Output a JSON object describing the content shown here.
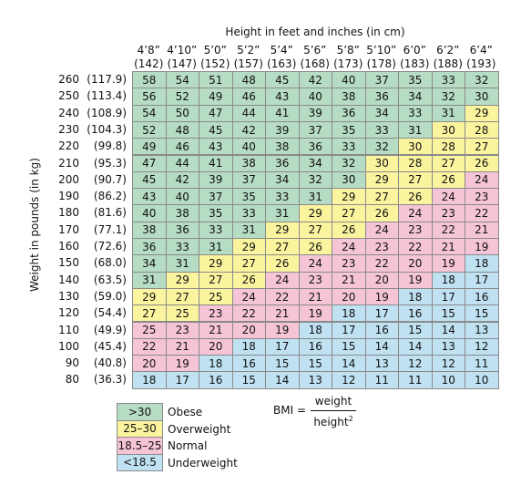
{
  "header": {
    "title": "Height in feet and inches (in cm)",
    "columns": [
      {
        "height": "4’8”",
        "cm": "(142)"
      },
      {
        "height": "4’10”",
        "cm": "(147)"
      },
      {
        "height": "5’0”",
        "cm": "(152)"
      },
      {
        "height": "5’2”",
        "cm": "(157)"
      },
      {
        "height": "5’4”",
        "cm": "(163)"
      },
      {
        "height": "5’6”",
        "cm": "(168)"
      },
      {
        "height": "5’8”",
        "cm": "(173)"
      },
      {
        "height": "5’10”",
        "cm": "(178)"
      },
      {
        "height": "6’0”",
        "cm": "(183)"
      },
      {
        "height": "6’2”",
        "cm": "(188)"
      },
      {
        "height": "6’4”",
        "cm": "(193)"
      }
    ]
  },
  "y_axis_label": "Weight in pounds (in kg)",
  "rows": [
    {
      "lb": "260",
      "kg": "(117.9)",
      "values": [
        58,
        54,
        51,
        48,
        45,
        42,
        40,
        37,
        35,
        33,
        32
      ],
      "colors": [
        "#b6dcc3",
        "#b6dcc3",
        "#b6dcc3",
        "#b6dcc3",
        "#b6dcc3",
        "#b6dcc3",
        "#b6dcc3",
        "#b6dcc3",
        "#b6dcc3",
        "#b6dcc3",
        "#b6dcc3"
      ]
    },
    {
      "lb": "250",
      "kg": "(113.4)",
      "values": [
        56,
        52,
        49,
        46,
        43,
        40,
        38,
        36,
        34,
        32,
        30
      ],
      "colors": [
        "#b6dcc3",
        "#b6dcc3",
        "#b6dcc3",
        "#b6dcc3",
        "#b6dcc3",
        "#b6dcc3",
        "#b6dcc3",
        "#b6dcc3",
        "#b6dcc3",
        "#b6dcc3",
        "#b6dcc3"
      ]
    },
    {
      "lb": "240",
      "kg": "(108.9)",
      "values": [
        54,
        50,
        47,
        44,
        41,
        39,
        36,
        34,
        33,
        31,
        29
      ],
      "colors": [
        "#b6dcc3",
        "#b6dcc3",
        "#b6dcc3",
        "#b6dcc3",
        "#b6dcc3",
        "#b6dcc3",
        "#b6dcc3",
        "#b6dcc3",
        "#b6dcc3",
        "#b6dcc3",
        "#fbf49f"
      ]
    },
    {
      "lb": "230",
      "kg": "(104.3)",
      "values": [
        52,
        48,
        45,
        42,
        39,
        37,
        35,
        33,
        31,
        30,
        28
      ],
      "colors": [
        "#b6dcc3",
        "#b6dcc3",
        "#b6dcc3",
        "#b6dcc3",
        "#b6dcc3",
        "#b6dcc3",
        "#b6dcc3",
        "#b6dcc3",
        "#b6dcc3",
        "#fbf49f",
        "#fbf49f"
      ]
    },
    {
      "lb": "220",
      "kg": "(99.8)",
      "values": [
        49,
        46,
        43,
        40,
        38,
        36,
        33,
        32,
        30,
        28,
        27
      ],
      "colors": [
        "#b6dcc3",
        "#b6dcc3",
        "#b6dcc3",
        "#b6dcc3",
        "#b6dcc3",
        "#b6dcc3",
        "#b6dcc3",
        "#b6dcc3",
        "#fbf49f",
        "#fbf49f",
        "#fbf49f"
      ]
    },
    {
      "lb": "210",
      "kg": "(95.3)",
      "values": [
        47,
        44,
        41,
        38,
        36,
        34,
        32,
        30,
        28,
        27,
        26
      ],
      "colors": [
        "#b6dcc3",
        "#b6dcc3",
        "#b6dcc3",
        "#b6dcc3",
        "#b6dcc3",
        "#b6dcc3",
        "#b6dcc3",
        "#fbf49f",
        "#fbf49f",
        "#fbf49f",
        "#fbf49f"
      ]
    },
    {
      "lb": "200",
      "kg": "(90.7)",
      "values": [
        45,
        42,
        39,
        37,
        34,
        32,
        30,
        29,
        27,
        26,
        24
      ],
      "colors": [
        "#b6dcc3",
        "#b6dcc3",
        "#b6dcc3",
        "#b6dcc3",
        "#b6dcc3",
        "#b6dcc3",
        "#b6dcc3",
        "#fbf49f",
        "#fbf49f",
        "#fbf49f",
        "#f5c4d7"
      ]
    },
    {
      "lb": "190",
      "kg": "(86.2)",
      "values": [
        43,
        40,
        37,
        35,
        33,
        31,
        29,
        27,
        26,
        24,
        23
      ],
      "colors": [
        "#b6dcc3",
        "#b6dcc3",
        "#b6dcc3",
        "#b6dcc3",
        "#b6dcc3",
        "#b6dcc3",
        "#fbf49f",
        "#fbf49f",
        "#fbf49f",
        "#f5c4d7",
        "#f5c4d7"
      ]
    },
    {
      "lb": "180",
      "kg": "(81.6)",
      "values": [
        40,
        38,
        35,
        33,
        31,
        29,
        27,
        26,
        24,
        23,
        22
      ],
      "colors": [
        "#b6dcc3",
        "#b6dcc3",
        "#b6dcc3",
        "#b6dcc3",
        "#b6dcc3",
        "#fbf49f",
        "#fbf49f",
        "#fbf49f",
        "#f5c4d7",
        "#f5c4d7",
        "#f5c4d7"
      ]
    },
    {
      "lb": "170",
      "kg": "(77.1)",
      "values": [
        38,
        36,
        33,
        31,
        29,
        27,
        26,
        24,
        23,
        22,
        21
      ],
      "colors": [
        "#b6dcc3",
        "#b6dcc3",
        "#b6dcc3",
        "#b6dcc3",
        "#fbf49f",
        "#fbf49f",
        "#fbf49f",
        "#f5c4d7",
        "#f5c4d7",
        "#f5c4d7",
        "#f5c4d7"
      ]
    },
    {
      "lb": "160",
      "kg": "(72.6)",
      "values": [
        36,
        33,
        31,
        29,
        27,
        26,
        24,
        23,
        22,
        21,
        19
      ],
      "colors": [
        "#b6dcc3",
        "#b6dcc3",
        "#b6dcc3",
        "#fbf49f",
        "#fbf49f",
        "#fbf49f",
        "#f5c4d7",
        "#f5c4d7",
        "#f5c4d7",
        "#f5c4d7",
        "#f5c4d7"
      ]
    },
    {
      "lb": "150",
      "kg": "(68.0)",
      "values": [
        34,
        31,
        29,
        27,
        26,
        24,
        23,
        22,
        20,
        19,
        18
      ],
      "colors": [
        "#b6dcc3",
        "#b6dcc3",
        "#fbf49f",
        "#fbf49f",
        "#fbf49f",
        "#f5c4d7",
        "#f5c4d7",
        "#f5c4d7",
        "#f5c4d7",
        "#f5c4d7",
        "#bfe1f2"
      ]
    },
    {
      "lb": "140",
      "kg": "(63.5)",
      "values": [
        31,
        29,
        27,
        26,
        24,
        23,
        21,
        20,
        19,
        18,
        17
      ],
      "colors": [
        "#b6dcc3",
        "#fbf49f",
        "#fbf49f",
        "#fbf49f",
        "#f5c4d7",
        "#f5c4d7",
        "#f5c4d7",
        "#f5c4d7",
        "#f5c4d7",
        "#bfe1f2",
        "#bfe1f2"
      ]
    },
    {
      "lb": "130",
      "kg": "(59.0)",
      "values": [
        29,
        27,
        25,
        24,
        22,
        21,
        20,
        19,
        18,
        17,
        16
      ],
      "colors": [
        "#fbf49f",
        "#fbf49f",
        "#fbf49f",
        "#f5c4d7",
        "#f5c4d7",
        "#f5c4d7",
        "#f5c4d7",
        "#f5c4d7",
        "#bfe1f2",
        "#bfe1f2",
        "#bfe1f2"
      ]
    },
    {
      "lb": "120",
      "kg": "(54.4)",
      "values": [
        27,
        25,
        23,
        22,
        21,
        19,
        18,
        17,
        16,
        15,
        15
      ],
      "colors": [
        "#fbf49f",
        "#fbf49f",
        "#f5c4d7",
        "#f5c4d7",
        "#f5c4d7",
        "#f5c4d7",
        "#bfe1f2",
        "#bfe1f2",
        "#bfe1f2",
        "#bfe1f2",
        "#bfe1f2"
      ]
    },
    {
      "lb": "110",
      "kg": "(49.9)",
      "values": [
        25,
        23,
        21,
        20,
        19,
        18,
        17,
        16,
        15,
        14,
        13
      ],
      "colors": [
        "#f5c4d7",
        "#f5c4d7",
        "#f5c4d7",
        "#f5c4d7",
        "#f5c4d7",
        "#bfe1f2",
        "#bfe1f2",
        "#bfe1f2",
        "#bfe1f2",
        "#bfe1f2",
        "#bfe1f2"
      ]
    },
    {
      "lb": "100",
      "kg": "(45.4)",
      "values": [
        22,
        21,
        20,
        18,
        17,
        16,
        15,
        14,
        14,
        13,
        12
      ],
      "colors": [
        "#f5c4d7",
        "#f5c4d7",
        "#f5c4d7",
        "#bfe1f2",
        "#bfe1f2",
        "#bfe1f2",
        "#bfe1f2",
        "#bfe1f2",
        "#bfe1f2",
        "#bfe1f2",
        "#bfe1f2"
      ]
    },
    {
      "lb": "90",
      "kg": "(40.8)",
      "values": [
        20,
        19,
        18,
        16,
        15,
        15,
        14,
        13,
        12,
        12,
        11
      ],
      "colors": [
        "#f5c4d7",
        "#f5c4d7",
        "#bfe1f2",
        "#bfe1f2",
        "#bfe1f2",
        "#bfe1f2",
        "#bfe1f2",
        "#bfe1f2",
        "#bfe1f2",
        "#bfe1f2",
        "#bfe1f2"
      ]
    },
    {
      "lb": "80",
      "kg": "(36.3)",
      "values": [
        18,
        17,
        16,
        15,
        14,
        13,
        12,
        11,
        11,
        10,
        10
      ],
      "colors": [
        "#bfe1f2",
        "#bfe1f2",
        "#bfe1f2",
        "#bfe1f2",
        "#bfe1f2",
        "#bfe1f2",
        "#bfe1f2",
        "#bfe1f2",
        "#bfe1f2",
        "#bfe1f2",
        "#bfe1f2"
      ]
    }
  ],
  "legend": [
    {
      "range": ">30",
      "label": "Obese",
      "color": "#b6dcc3"
    },
    {
      "range": "25–30",
      "label": "Overweight",
      "color": "#fbf49f"
    },
    {
      "range": "18.5–25",
      "label": "Normal",
      "color": "#f5c4d7"
    },
    {
      "range": "<18.5",
      "label": "Underweight",
      "color": "#bfe1f2"
    }
  ],
  "formula": {
    "lhs": "BMI =",
    "numerator": "weight",
    "denominator": "height",
    "exponent": "2"
  }
}
